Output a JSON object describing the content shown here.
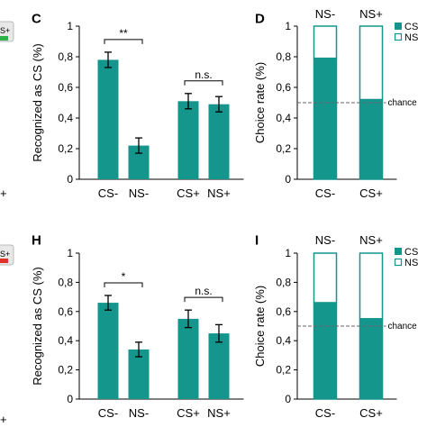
{
  "colors": {
    "bar": "#14968d",
    "axis": "#000000",
    "chance_line": "#666666"
  },
  "fragments": {
    "top_inset_label": "S+",
    "bottom_inset_label": "S+",
    "top_edge_label": "+",
    "bottom_edge_label": "+"
  },
  "chart_data": [
    {
      "panel": "C",
      "type": "bar",
      "ylabel": "Recognized as CS (%)",
      "ylim": [
        0,
        1
      ],
      "yticks": [
        "0",
        "0,2",
        "0,4",
        "0,6",
        "0,8",
        "1"
      ],
      "categories": [
        "CS-",
        "NS-",
        "CS+",
        "NS+"
      ],
      "values": [
        0.78,
        0.22,
        0.51,
        0.49
      ],
      "errors": [
        0.05,
        0.05,
        0.05,
        0.05
      ],
      "annotations": [
        {
          "text": "**",
          "between": [
            "CS-",
            "NS-"
          ]
        },
        {
          "text": "n.s.",
          "between": [
            "CS+",
            "NS+"
          ]
        }
      ]
    },
    {
      "panel": "D",
      "type": "bar",
      "stacked": true,
      "ylabel": "Choice rate (%)",
      "ylim": [
        0,
        1
      ],
      "yticks": [
        "0",
        "0,2",
        "0,4",
        "0,6",
        "0,8",
        "1"
      ],
      "categories": [
        "CS-",
        "CS+"
      ],
      "top_labels": [
        "NS-",
        "NS+"
      ],
      "series": [
        {
          "name": "CS",
          "values": [
            0.79,
            0.52
          ]
        },
        {
          "name": "NS",
          "values": [
            0.21,
            0.48
          ]
        }
      ],
      "reference_line": {
        "value": 0.5,
        "label": "chance"
      },
      "legend": "top-right"
    },
    {
      "panel": "H",
      "type": "bar",
      "ylabel": "Recognized as CS (%)",
      "ylim": [
        0,
        1
      ],
      "yticks": [
        "0",
        "0,2",
        "0,4",
        "0,6",
        "0,8",
        "1"
      ],
      "categories": [
        "CS-",
        "NS-",
        "CS+",
        "NS+"
      ],
      "values": [
        0.66,
        0.34,
        0.55,
        0.45
      ],
      "errors": [
        0.05,
        0.05,
        0.06,
        0.06
      ],
      "annotations": [
        {
          "text": "*",
          "between": [
            "CS-",
            "NS-"
          ]
        },
        {
          "text": "n.s.",
          "between": [
            "CS+",
            "NS+"
          ]
        }
      ]
    },
    {
      "panel": "I",
      "type": "bar",
      "stacked": true,
      "ylabel": "Choice rate (%)",
      "ylim": [
        0,
        1
      ],
      "yticks": [
        "0",
        "0,2",
        "0,4",
        "0,6",
        "0,8",
        "1"
      ],
      "categories": [
        "CS-",
        "CS+"
      ],
      "top_labels": [
        "NS-",
        "NS+"
      ],
      "series": [
        {
          "name": "CS",
          "values": [
            0.66,
            0.55
          ]
        },
        {
          "name": "NS",
          "values": [
            0.34,
            0.45
          ]
        }
      ],
      "reference_line": {
        "value": 0.5,
        "label": "chance"
      },
      "legend": "top-right"
    }
  ]
}
